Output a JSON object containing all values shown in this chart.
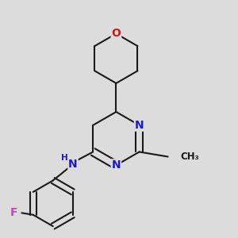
{
  "bg_color": "#dcdcdc",
  "bond_color": "#1a1a1a",
  "bond_width": 1.5,
  "atom_colors": {
    "N": "#1a1acc",
    "O": "#cc1a1a",
    "F": "#cc44bb",
    "C": "#1a1a1a"
  },
  "font_size_atom": 10,
  "font_size_small": 8.5
}
